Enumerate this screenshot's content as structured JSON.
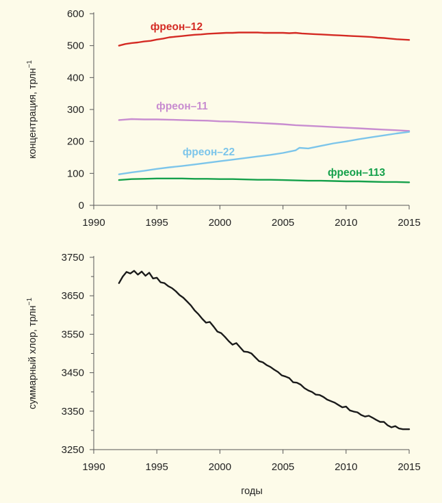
{
  "chart_data": [
    {
      "type": "line",
      "ylabel": "концентрация, трлн",
      "ylabel_sup": "−1",
      "xlim": [
        1990,
        2015
      ],
      "ylim": [
        0,
        600
      ],
      "x_ticks": [
        "1990",
        "1995",
        "2000",
        "2005",
        "2010",
        "2015"
      ],
      "y_ticks": [
        "0",
        "100",
        "200",
        "300",
        "400",
        "500",
        "600"
      ],
      "grid": false,
      "series": [
        {
          "name": "фреон–12",
          "color": "#d42a23",
          "x": [
            1992.0,
            1992.5,
            1993.0,
            1993.5,
            1994.0,
            1994.5,
            1995.0,
            1995.5,
            1996.0,
            1996.5,
            1997.0,
            1997.5,
            1998.0,
            1998.5,
            1999.0,
            1999.5,
            2000.0,
            2000.5,
            2001.0,
            2001.5,
            2002.0,
            2002.5,
            2003.0,
            2003.5,
            2004.0,
            2004.5,
            2005.0,
            2005.5,
            2006.0,
            2006.5,
            2007.0,
            2007.5,
            2008.0,
            2008.5,
            2009.0,
            2009.5,
            2010.0,
            2010.5,
            2011.0,
            2011.5,
            2012.0,
            2012.5,
            2013.0,
            2013.5,
            2014.0,
            2014.5,
            2015.0
          ],
          "values": [
            500,
            505,
            508,
            510,
            513,
            515,
            519,
            522,
            526,
            528,
            530,
            532,
            534,
            535,
            537,
            538,
            539,
            540,
            540,
            541,
            541,
            541,
            541,
            540,
            540,
            540,
            540,
            539,
            540,
            538,
            537,
            536,
            535,
            534,
            533,
            532,
            531,
            530,
            529,
            528,
            527,
            525,
            524,
            522,
            520,
            519,
            518
          ]
        },
        {
          "name": "фреон–11",
          "color": "#c88cd0",
          "x": [
            1992.0,
            1993.0,
            1994.0,
            1995.0,
            1996.0,
            1997.0,
            1998.0,
            1999.0,
            2000.0,
            2001.0,
            2002.0,
            2003.0,
            2004.0,
            2005.0,
            2006.0,
            2007.0,
            2008.0,
            2009.0,
            2010.0,
            2011.0,
            2012.0,
            2013.0,
            2014.0,
            2015.0
          ],
          "values": [
            267,
            270,
            269,
            269,
            268,
            267,
            266,
            265,
            263,
            262,
            260,
            258,
            256,
            254,
            251,
            249,
            247,
            245,
            243,
            241,
            239,
            237,
            235,
            233
          ]
        },
        {
          "name": "фреон–22",
          "color": "#7cc5ea",
          "x": [
            1992.0,
            1993.0,
            1994.0,
            1995.0,
            1996.0,
            1997.0,
            1998.0,
            1999.0,
            2000.0,
            2001.0,
            2002.0,
            2003.0,
            2004.0,
            2005.0,
            2006.0,
            2006.3,
            2007.0,
            2008.0,
            2009.0,
            2010.0,
            2011.0,
            2012.0,
            2013.0,
            2014.0,
            2015.0
          ],
          "values": [
            97,
            103,
            108,
            114,
            119,
            123,
            128,
            133,
            138,
            143,
            148,
            153,
            158,
            164,
            172,
            180,
            178,
            186,
            194,
            200,
            207,
            213,
            219,
            225,
            230
          ]
        },
        {
          "name": "фреон–113",
          "color": "#14a04a",
          "x": [
            1992.0,
            1993.0,
            1994.0,
            1995.0,
            1996.0,
            1997.0,
            1998.0,
            1999.0,
            2000.0,
            2001.0,
            2002.0,
            2003.0,
            2004.0,
            2005.0,
            2006.0,
            2007.0,
            2008.0,
            2009.0,
            2010.0,
            2011.0,
            2012.0,
            2013.0,
            2014.0,
            2015.0
          ],
          "values": [
            79,
            82,
            83,
            84,
            84,
            84,
            83,
            83,
            82,
            82,
            81,
            80,
            80,
            79,
            78,
            77,
            77,
            76,
            75,
            75,
            74,
            73,
            73,
            72
          ]
        }
      ]
    },
    {
      "type": "line",
      "ylabel": "суммарный хлор, трлн",
      "ylabel_sup": "−1",
      "xlabel": "годы",
      "xlim": [
        1990,
        2015
      ],
      "ylim": [
        3250,
        3750
      ],
      "x_ticks": [
        "1990",
        "1995",
        "2000",
        "2005",
        "2010",
        "2015"
      ],
      "y_ticks": [
        "3250",
        "3350",
        "3450",
        "3550",
        "3650",
        "3750"
      ],
      "grid": false,
      "series": [
        {
          "color": "#1a1a1a",
          "x": [
            1992.0,
            1992.3,
            1992.6,
            1992.9,
            1993.2,
            1993.5,
            1993.8,
            1994.1,
            1994.4,
            1994.7,
            1995.0,
            1995.3,
            1995.6,
            1995.9,
            1996.2,
            1996.5,
            1996.8,
            1997.1,
            1997.4,
            1997.7,
            1998.0,
            1998.3,
            1998.6,
            1998.9,
            1999.2,
            1999.5,
            1999.8,
            2000.1,
            2000.4,
            2000.7,
            2001.0,
            2001.3,
            2001.6,
            2001.9,
            2002.2,
            2002.5,
            2002.8,
            2003.1,
            2003.4,
            2003.7,
            2004.0,
            2004.3,
            2004.6,
            2004.9,
            2005.2,
            2005.5,
            2005.8,
            2006.1,
            2006.4,
            2006.7,
            2007.0,
            2007.3,
            2007.6,
            2007.9,
            2008.2,
            2008.5,
            2008.8,
            2009.1,
            2009.4,
            2009.7,
            2010.0,
            2010.3,
            2010.6,
            2010.9,
            2011.2,
            2011.5,
            2011.8,
            2012.1,
            2012.4,
            2012.7,
            2013.0,
            2013.3,
            2013.6,
            2013.9,
            2014.2,
            2014.5,
            2014.8,
            2015.0
          ],
          "values": [
            3683,
            3700,
            3712,
            3708,
            3715,
            3705,
            3713,
            3702,
            3710,
            3695,
            3697,
            3685,
            3683,
            3675,
            3670,
            3662,
            3652,
            3645,
            3635,
            3625,
            3612,
            3602,
            3590,
            3580,
            3582,
            3570,
            3557,
            3553,
            3543,
            3532,
            3523,
            3527,
            3516,
            3505,
            3504,
            3500,
            3490,
            3480,
            3477,
            3470,
            3465,
            3458,
            3452,
            3443,
            3440,
            3436,
            3425,
            3424,
            3419,
            3410,
            3404,
            3400,
            3393,
            3392,
            3387,
            3380,
            3376,
            3372,
            3366,
            3360,
            3362,
            3352,
            3349,
            3347,
            3340,
            3336,
            3338,
            3333,
            3327,
            3322,
            3322,
            3313,
            3308,
            3311,
            3305,
            3303,
            3303,
            3303
          ]
        }
      ]
    }
  ]
}
